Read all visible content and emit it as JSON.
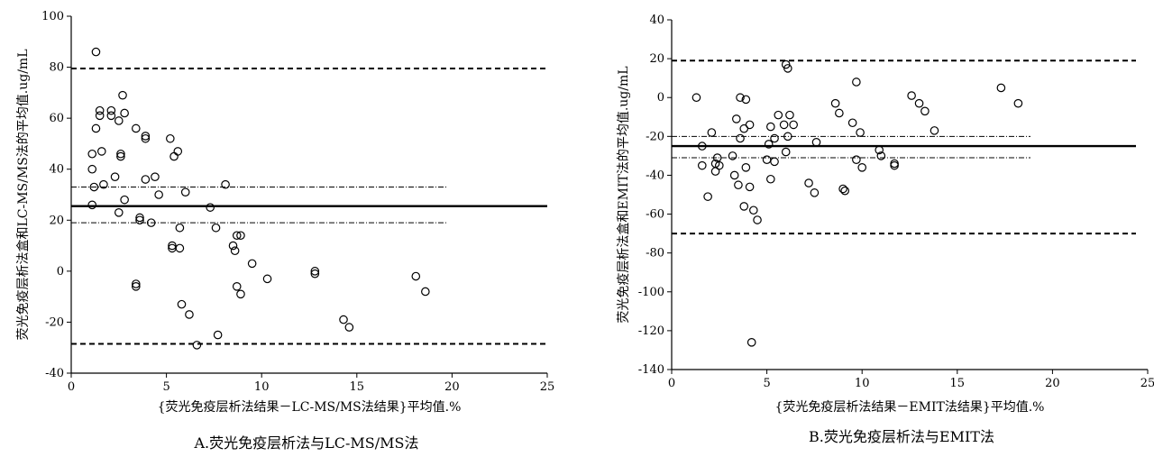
{
  "chart_data": [
    {
      "type": "scatter",
      "xlabel": "{荧光免疫层析法结果－LC-MS/MS法结果}平均值.%",
      "ylabel": "荧光免疫层析法盒和LC-MS/MS法的平均值.ug/mL",
      "caption": "A.荧光免疫层析法与LC-MS/MS法",
      "xlim": [
        0,
        25
      ],
      "ylim": [
        -40,
        100
      ],
      "xticks": [
        "0",
        "5",
        "10",
        "15",
        "20",
        "25"
      ],
      "yticks": [
        "-40",
        "-20",
        "0",
        "20",
        "40",
        "60",
        "80",
        "100"
      ],
      "mean_line": 25.5,
      "loa_upper": 79.5,
      "loa_lower": -28.5,
      "ci_upper": 33,
      "ci_lower": 19,
      "points": [
        {
          "x": 1.3,
          "y": 86
        },
        {
          "x": 1.5,
          "y": 63
        },
        {
          "x": 1.5,
          "y": 61
        },
        {
          "x": 1.3,
          "y": 56
        },
        {
          "x": 1.1,
          "y": 46
        },
        {
          "x": 1.1,
          "y": 40
        },
        {
          "x": 1.6,
          "y": 47
        },
        {
          "x": 1.7,
          "y": 34
        },
        {
          "x": 1.2,
          "y": 33
        },
        {
          "x": 1.1,
          "y": 26
        },
        {
          "x": 2.1,
          "y": 63
        },
        {
          "x": 2.1,
          "y": 61
        },
        {
          "x": 2.5,
          "y": 59
        },
        {
          "x": 2.7,
          "y": 69
        },
        {
          "x": 2.8,
          "y": 62
        },
        {
          "x": 2.6,
          "y": 46
        },
        {
          "x": 2.6,
          "y": 45
        },
        {
          "x": 2.3,
          "y": 37
        },
        {
          "x": 2.5,
          "y": 23
        },
        {
          "x": 2.8,
          "y": 28
        },
        {
          "x": 3.4,
          "y": 56
        },
        {
          "x": 3.9,
          "y": 53
        },
        {
          "x": 3.9,
          "y": 52
        },
        {
          "x": 3.9,
          "y": 36
        },
        {
          "x": 4.4,
          "y": 37
        },
        {
          "x": 4.6,
          "y": 30
        },
        {
          "x": 3.6,
          "y": 21
        },
        {
          "x": 3.6,
          "y": 20
        },
        {
          "x": 4.2,
          "y": 19
        },
        {
          "x": 5.2,
          "y": 52
        },
        {
          "x": 5.4,
          "y": 45
        },
        {
          "x": 5.6,
          "y": 47
        },
        {
          "x": 6.0,
          "y": 31
        },
        {
          "x": 5.7,
          "y": 17
        },
        {
          "x": 5.3,
          "y": 10
        },
        {
          "x": 5.3,
          "y": 9
        },
        {
          "x": 5.7,
          "y": 9
        },
        {
          "x": 3.4,
          "y": -6
        },
        {
          "x": 3.4,
          "y": -5
        },
        {
          "x": 5.8,
          "y": -13
        },
        {
          "x": 6.2,
          "y": -17
        },
        {
          "x": 6.6,
          "y": -29
        },
        {
          "x": 7.3,
          "y": 25
        },
        {
          "x": 7.6,
          "y": 17
        },
        {
          "x": 8.1,
          "y": 34
        },
        {
          "x": 8.5,
          "y": 10
        },
        {
          "x": 8.6,
          "y": 8
        },
        {
          "x": 8.7,
          "y": 14
        },
        {
          "x": 8.9,
          "y": 14
        },
        {
          "x": 8.7,
          "y": -6
        },
        {
          "x": 8.9,
          "y": -9
        },
        {
          "x": 7.7,
          "y": -25
        },
        {
          "x": 9.5,
          "y": 3
        },
        {
          "x": 10.3,
          "y": -3
        },
        {
          "x": 12.8,
          "y": 0
        },
        {
          "x": 12.8,
          "y": -1
        },
        {
          "x": 14.3,
          "y": -19
        },
        {
          "x": 14.6,
          "y": -22
        },
        {
          "x": 18.1,
          "y": -2
        },
        {
          "x": 18.6,
          "y": -8
        }
      ]
    },
    {
      "type": "scatter",
      "xlabel": "{荧光免疫层析法结果－EMIT法结果}平均值.%",
      "ylabel": "荧光免疫层析法盒和EMIT法的平均值.ug/mL",
      "caption": "B.荧光免疫层析法与EMIT法",
      "xlim": [
        0,
        25
      ],
      "ylim": [
        -140,
        40
      ],
      "xticks": [
        "0",
        "5",
        "10",
        "15",
        "20",
        "25"
      ],
      "yticks": [
        "-140",
        "-120",
        "-100",
        "-80",
        "-60",
        "-40",
        "-20",
        "0",
        "20",
        "40"
      ],
      "mean_line": -25,
      "loa_upper": 19,
      "loa_lower": -70,
      "ci_upper": -20,
      "ci_lower": -31,
      "points": [
        {
          "x": 1.3,
          "y": 0
        },
        {
          "x": 1.6,
          "y": -25
        },
        {
          "x": 1.6,
          "y": -35
        },
        {
          "x": 1.9,
          "y": -51
        },
        {
          "x": 2.1,
          "y": -18
        },
        {
          "x": 2.3,
          "y": -34
        },
        {
          "x": 2.4,
          "y": -31
        },
        {
          "x": 2.3,
          "y": -38
        },
        {
          "x": 2.5,
          "y": -35
        },
        {
          "x": 3.2,
          "y": -30
        },
        {
          "x": 3.4,
          "y": -11
        },
        {
          "x": 3.3,
          "y": -40
        },
        {
          "x": 3.5,
          "y": -45
        },
        {
          "x": 3.6,
          "y": 0
        },
        {
          "x": 3.9,
          "y": -1
        },
        {
          "x": 4.1,
          "y": -14
        },
        {
          "x": 3.6,
          "y": -21
        },
        {
          "x": 3.8,
          "y": -16
        },
        {
          "x": 3.9,
          "y": -36
        },
        {
          "x": 3.8,
          "y": -56
        },
        {
          "x": 4.1,
          "y": -46
        },
        {
          "x": 4.3,
          "y": -58
        },
        {
          "x": 4.5,
          "y": -63
        },
        {
          "x": 4.2,
          "y": -126
        },
        {
          "x": 5.2,
          "y": -15
        },
        {
          "x": 5.1,
          "y": -24
        },
        {
          "x": 5.4,
          "y": -21
        },
        {
          "x": 5.0,
          "y": -32
        },
        {
          "x": 5.4,
          "y": -33
        },
        {
          "x": 5.2,
          "y": -42
        },
        {
          "x": 5.6,
          "y": -9
        },
        {
          "x": 6.0,
          "y": 17
        },
        {
          "x": 6.1,
          "y": 15
        },
        {
          "x": 5.9,
          "y": -14
        },
        {
          "x": 6.1,
          "y": -20
        },
        {
          "x": 6.0,
          "y": -28
        },
        {
          "x": 6.2,
          "y": -9
        },
        {
          "x": 6.4,
          "y": -14
        },
        {
          "x": 7.2,
          "y": -44
        },
        {
          "x": 7.5,
          "y": -49
        },
        {
          "x": 7.6,
          "y": -23
        },
        {
          "x": 8.6,
          "y": -3
        },
        {
          "x": 8.8,
          "y": -8
        },
        {
          "x": 9.0,
          "y": -47
        },
        {
          "x": 9.1,
          "y": -48
        },
        {
          "x": 9.5,
          "y": -13
        },
        {
          "x": 9.7,
          "y": 8
        },
        {
          "x": 9.9,
          "y": -18
        },
        {
          "x": 9.7,
          "y": -32
        },
        {
          "x": 10.0,
          "y": -36
        },
        {
          "x": 10.9,
          "y": -27
        },
        {
          "x": 11.0,
          "y": -30
        },
        {
          "x": 11.7,
          "y": -34
        },
        {
          "x": 11.7,
          "y": -35
        },
        {
          "x": 12.6,
          "y": 1
        },
        {
          "x": 13.0,
          "y": -3
        },
        {
          "x": 13.3,
          "y": -7
        },
        {
          "x": 13.8,
          "y": -17
        },
        {
          "x": 17.3,
          "y": 5
        },
        {
          "x": 18.2,
          "y": -3
        }
      ]
    }
  ]
}
